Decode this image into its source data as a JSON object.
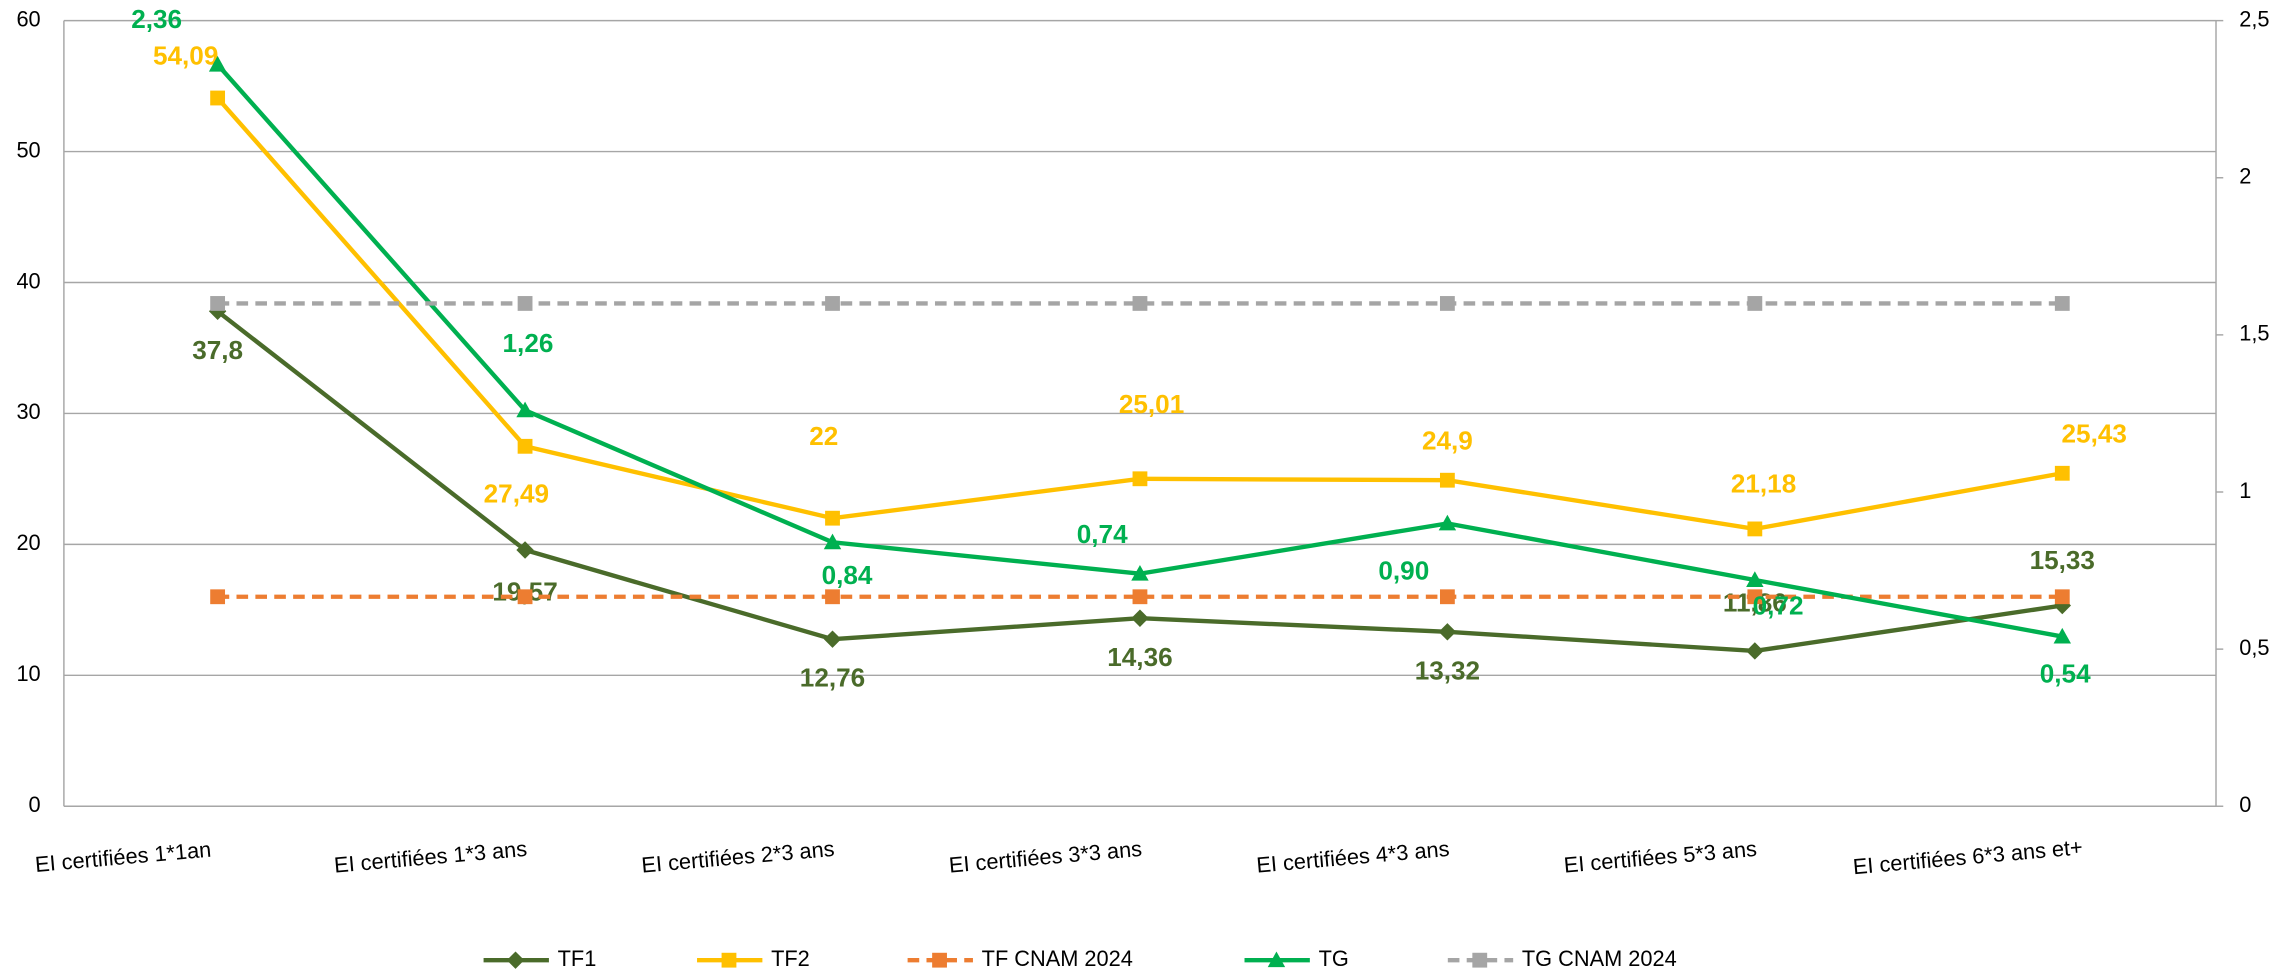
{
  "chart_data": {
    "type": "line",
    "categories": [
      "EI certifiées 1*1an",
      "EI certifiées 1*3 ans",
      "EI certifiées 2*3 ans",
      "EI certifiées 3*3 ans",
      "EI certifiées 4*3 ans",
      "EI certifiées 5*3 ans",
      "EI certifiées 6*3 ans  et+"
    ],
    "series": [
      {
        "name": "TF1",
        "color": "#4a6b2a",
        "marker": "diamond",
        "values": [
          37.8,
          19.57,
          12.76,
          14.36,
          13.32,
          11.86,
          15.33
        ],
        "value_labels": [
          "37,8",
          "19,57",
          "12,76",
          "14,36",
          "13,32",
          "11,86",
          "15,33"
        ]
      },
      {
        "name": "TF2",
        "color": "#ffc000",
        "marker": "square",
        "values": [
          54.09,
          27.49,
          22,
          25.01,
          24.9,
          21.18,
          25.43
        ],
        "value_labels": [
          "54,09",
          "27,49",
          "22",
          "25,01",
          "24,9",
          "21,18",
          "25,43"
        ]
      },
      {
        "name": "TF CNAM 2024",
        "color": "#ed7d31",
        "marker": "square",
        "dashed": true,
        "values": [
          16,
          16,
          16,
          16,
          16,
          16,
          16
        ]
      },
      {
        "name": "TG",
        "color": "#00b050",
        "marker": "triangle",
        "axis": "y2",
        "values": [
          2.36,
          1.26,
          0.84,
          0.74,
          0.9,
          0.72,
          0.54
        ],
        "value_labels": [
          "2,36",
          "1,26",
          "0,84",
          "0,74",
          "0,90",
          "0,72",
          "0,54"
        ]
      },
      {
        "name": "TG CNAM 2024",
        "color": "#a5a5a5",
        "marker": "square",
        "dashed": true,
        "axis": "y2",
        "values": [
          1.6,
          1.6,
          1.6,
          1.6,
          1.6,
          1.6,
          1.6
        ]
      }
    ],
    "ylim": [
      0,
      60
    ],
    "yticks": [
      0,
      10,
      20,
      30,
      40,
      50,
      60
    ],
    "y2lim": [
      0,
      2.5
    ],
    "y2ticks": [
      0,
      {
        "value": 0.5,
        "label": "0,5"
      },
      1,
      {
        "value": 1.5,
        "label": "1,5"
      },
      2,
      {
        "value": 2.5,
        "label": "2,5"
      }
    ],
    "grid": true,
    "legend": "bottom"
  }
}
